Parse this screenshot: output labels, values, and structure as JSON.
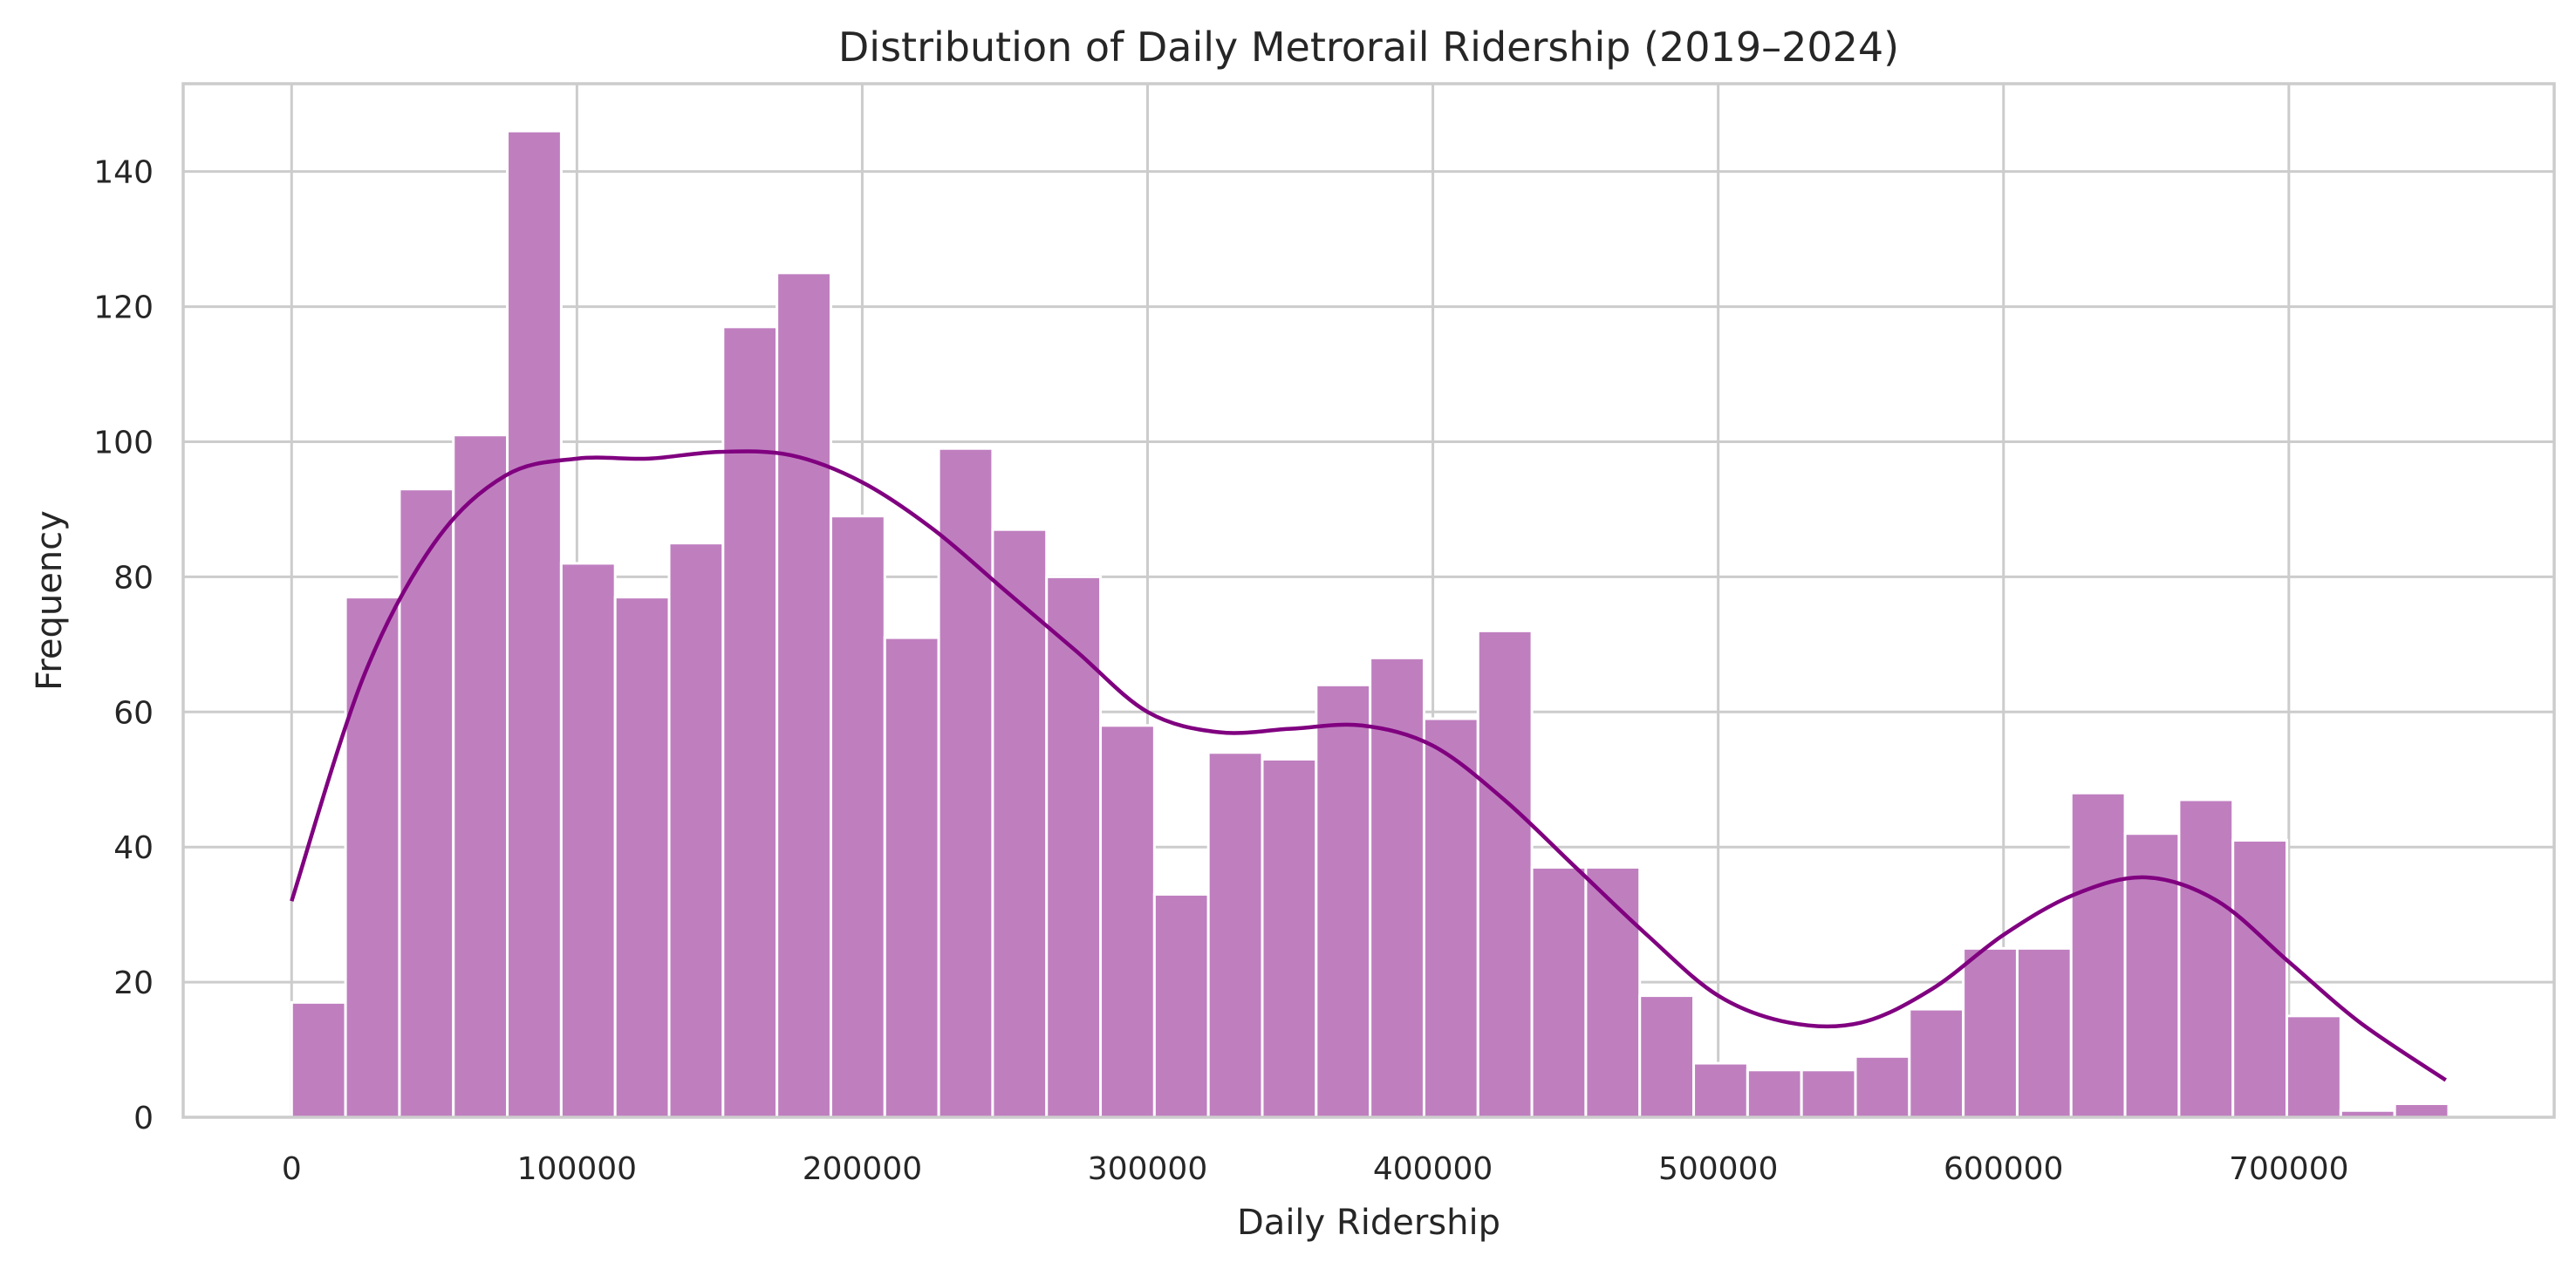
{
  "chart_data": {
    "type": "bar",
    "title": "Distribution of Daily Metrorail Ridership (2019–2024)",
    "xlabel": "Daily Ridership",
    "ylabel": "Frequency",
    "xlim": [
      -38000,
      793000
    ],
    "ylim": [
      0,
      153
    ],
    "x_ticks": [
      0,
      100000,
      200000,
      300000,
      400000,
      500000,
      600000,
      700000
    ],
    "x_tick_labels": [
      "0",
      "100000",
      "200000",
      "300000",
      "400000",
      "500000",
      "600000",
      "700000"
    ],
    "y_ticks": [
      0,
      20,
      40,
      60,
      80,
      100,
      120,
      140
    ],
    "y_tick_labels": [
      "0",
      "20",
      "40",
      "60",
      "80",
      "100",
      "120",
      "140"
    ],
    "grid": true,
    "bin_start": 0,
    "bin_width": 18900,
    "values": [
      17,
      77,
      93,
      101,
      146,
      82,
      77,
      85,
      117,
      125,
      89,
      71,
      99,
      87,
      80,
      58,
      33,
      54,
      53,
      64,
      68,
      59,
      72,
      37,
      37,
      18,
      8,
      7,
      7,
      9,
      16,
      25,
      25,
      48,
      42,
      47,
      41,
      15,
      1,
      2
    ],
    "kde": {
      "x": [
        0,
        25000,
        50000,
        75000,
        100000,
        125000,
        150000,
        175000,
        200000,
        225000,
        250000,
        275000,
        300000,
        325000,
        350000,
        375000,
        400000,
        425000,
        450000,
        475000,
        500000,
        525000,
        550000,
        575000,
        600000,
        625000,
        650000,
        675000,
        700000,
        725000,
        755000
      ],
      "y": [
        32,
        65,
        85,
        95,
        97.5,
        97.5,
        98.5,
        98,
        94,
        87,
        78,
        69,
        60,
        57,
        57.5,
        58,
        55,
        47,
        37,
        27,
        18,
        14,
        14,
        19,
        27,
        33,
        35.5,
        32,
        23,
        14,
        5.5
      ]
    },
    "colors": {
      "bar": "#bf7fbf",
      "kde": "#800080"
    }
  }
}
